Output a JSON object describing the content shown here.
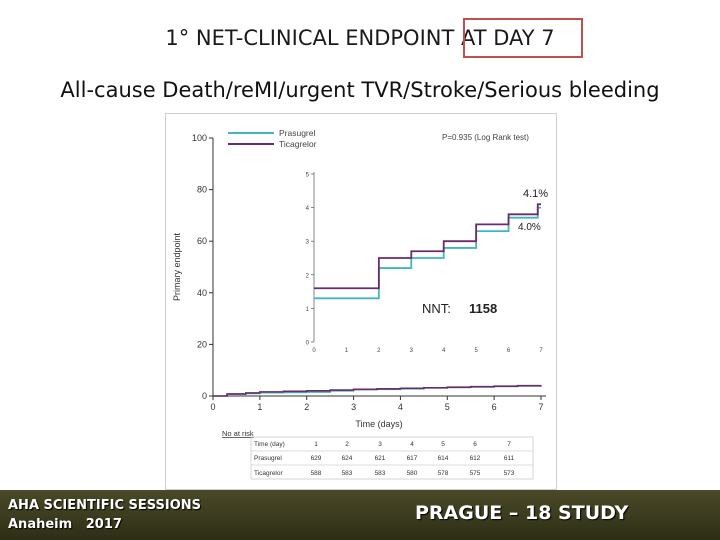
{
  "slide": {
    "title": "1° NET-CLINICAL ENDPOINT AT DAY 7",
    "subtitle": "All-cause Death/reMI/urgent TVR/Stroke/Serious bleeding",
    "footer_left_line1": "AHA SCIENTIFIC SESSIONS",
    "footer_left_line2": "Anaheim   2017",
    "footer_right": "PRAGUE – 18 STUDY",
    "nnt_label": "NNT:",
    "nnt_value": "1158",
    "annot_prasugrel": "4.0%",
    "annot_ticagrelor": "4.1%"
  },
  "chart_data": {
    "type": "line",
    "ylabel": "Primary endpoint",
    "xlabel": "Time (days)",
    "pvalue": "P=0.935 (Log Rank test)",
    "xlim": [
      0,
      7
    ],
    "ylim": [
      0,
      100
    ],
    "x_ticks": [
      0,
      1,
      2,
      3,
      4,
      5,
      6,
      7
    ],
    "y_ticks": [
      0,
      20,
      40,
      60,
      80,
      100
    ],
    "colors": {
      "prasugrel": "#3fb7bd",
      "ticagrelor": "#6b2a6b"
    },
    "series": [
      {
        "name": "Prasugrel",
        "x": [
          0,
          0.3,
          0.7,
          1,
          1.5,
          2,
          2.5,
          3,
          3.5,
          4,
          4.5,
          5,
          5.5,
          6,
          6.5,
          7
        ],
        "values": [
          0,
          0.7,
          1.0,
          1.3,
          1.4,
          1.5,
          2.0,
          2.5,
          2.6,
          2.8,
          3.1,
          3.3,
          3.5,
          3.7,
          3.9,
          4.0
        ]
      },
      {
        "name": "Ticagrelor",
        "x": [
          0,
          0.3,
          0.7,
          1,
          1.5,
          2,
          2.5,
          3,
          3.5,
          4,
          4.5,
          5,
          5.5,
          6,
          6.5,
          7
        ],
        "values": [
          0,
          0.8,
          1.2,
          1.6,
          1.8,
          2.0,
          2.3,
          2.6,
          2.8,
          3.0,
          3.2,
          3.4,
          3.6,
          3.8,
          4.0,
          4.1
        ]
      }
    ],
    "inset": {
      "x_ticks": [
        0,
        1,
        2,
        3,
        4,
        5,
        6,
        7
      ],
      "y_ticks": [
        0,
        1,
        2,
        3,
        4,
        5
      ],
      "ylim": [
        0,
        5
      ],
      "series": [
        {
          "name": "Prasugrel",
          "x": [
            0,
            1,
            2,
            3,
            4,
            5,
            6,
            6.9,
            7
          ],
          "values": [
            1.3,
            1.3,
            2.2,
            2.5,
            2.8,
            3.3,
            3.7,
            4.0,
            4.0
          ]
        },
        {
          "name": "Ticagrelor",
          "x": [
            0,
            1,
            2,
            3,
            4,
            5,
            6,
            6.9,
            7
          ],
          "values": [
            1.6,
            1.6,
            2.5,
            2.7,
            3.0,
            3.5,
            3.8,
            4.1,
            4.1
          ]
        }
      ]
    },
    "risk_table": {
      "title": "No at risk",
      "header": [
        "Time (day)",
        "1",
        "2",
        "3",
        "4",
        "5",
        "6",
        "7"
      ],
      "rows": [
        [
          "Prasugrel",
          "629",
          "624",
          "621",
          "617",
          "614",
          "612",
          "611"
        ],
        [
          "Ticagrelor",
          "588",
          "583",
          "583",
          "580",
          "578",
          "575",
          "573"
        ]
      ]
    }
  }
}
